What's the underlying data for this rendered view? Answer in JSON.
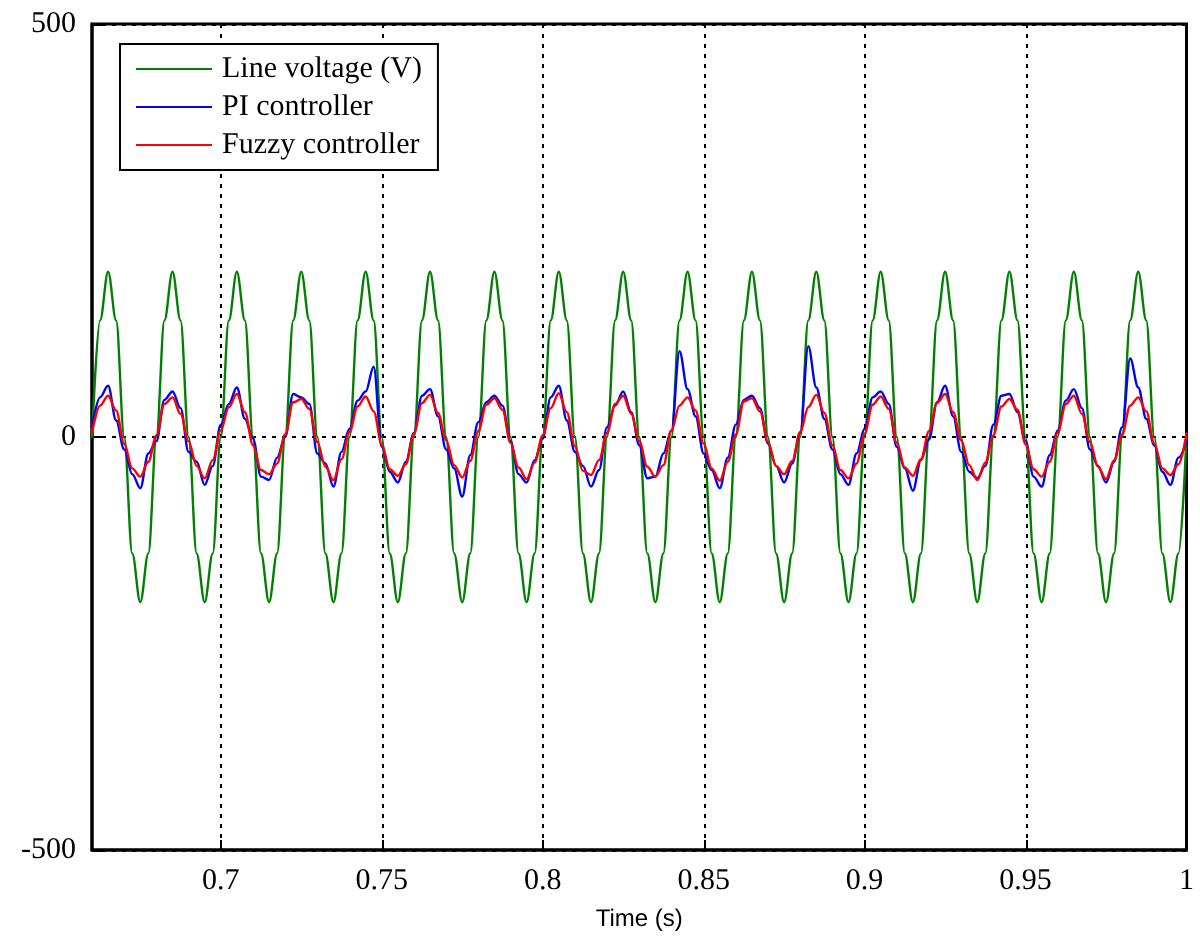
{
  "chart_data": {
    "type": "line",
    "xlabel": "Time (s)",
    "xlim": [
      0.66,
      1
    ],
    "xticks": [
      0.7,
      0.75,
      0.8,
      0.85,
      0.9,
      0.95,
      1
    ],
    "ylim": [
      -500,
      500
    ],
    "yticks": [
      -500,
      0,
      500
    ],
    "grid": true,
    "legend": "top left",
    "marker": "none",
    "line_style": "solid",
    "x": [
      0.66,
      0.6625,
      0.665,
      0.6675,
      0.67,
      0.6725,
      0.675,
      0.6775,
      0.68,
      0.6825,
      0.685,
      0.6875,
      0.69,
      0.6925,
      0.695,
      0.6975,
      0.7,
      0.7025,
      0.705,
      0.7075,
      0.71,
      0.7125,
      0.715,
      0.7175,
      0.72,
      0.7225,
      0.725,
      0.7275,
      0.73,
      0.7325,
      0.735,
      0.7375,
      0.74,
      0.7425,
      0.745,
      0.7475,
      0.75,
      0.7525,
      0.755,
      0.7575,
      0.76,
      0.7625,
      0.765,
      0.7675,
      0.77,
      0.7725,
      0.775,
      0.7775,
      0.78,
      0.7825,
      0.785,
      0.7875,
      0.79,
      0.7925,
      0.795,
      0.7975,
      0.8,
      0.8025,
      0.805,
      0.8075,
      0.81,
      0.8125,
      0.815,
      0.8175,
      0.82,
      0.8225,
      0.825,
      0.8275,
      0.83,
      0.8325,
      0.835,
      0.8375,
      0.84,
      0.8425,
      0.845,
      0.8475,
      0.85,
      0.8525,
      0.855,
      0.8575,
      0.86,
      0.8625,
      0.865,
      0.8675,
      0.87,
      0.8725,
      0.875,
      0.8775,
      0.88,
      0.8825,
      0.885,
      0.8875,
      0.89,
      0.8925,
      0.895,
      0.8975,
      0.9,
      0.9025,
      0.905,
      0.9075,
      0.91,
      0.9125,
      0.915,
      0.9175,
      0.92,
      0.9225,
      0.925,
      0.9275,
      0.93,
      0.9325,
      0.935,
      0.9375,
      0.94,
      0.9425,
      0.945,
      0.9475,
      0.95,
      0.9525,
      0.955,
      0.9575,
      0.96,
      0.9625,
      0.965,
      0.9675,
      0.97,
      0.9725,
      0.975,
      0.9775,
      0.98,
      0.9825,
      0.985,
      0.9875,
      0.99,
      0.9925,
      0.995,
      0.9975,
      1
    ],
    "series": [
      {
        "name": "Line voltage (V)",
        "color": "#008000",
        "values": [
          0,
          141,
          200,
          141,
          0,
          -141,
          -200,
          -141,
          0,
          141,
          200,
          141,
          0,
          -141,
          -200,
          -141,
          0,
          141,
          200,
          141,
          0,
          -141,
          -200,
          -141,
          0,
          141,
          200,
          141,
          0,
          -141,
          -200,
          -141,
          0,
          141,
          200,
          141,
          0,
          -141,
          -200,
          -141,
          0,
          141,
          200,
          141,
          0,
          -141,
          -200,
          -141,
          0,
          141,
          200,
          141,
          0,
          -141,
          -200,
          -141,
          0,
          141,
          200,
          141,
          0,
          -141,
          -200,
          -141,
          0,
          141,
          200,
          141,
          0,
          -141,
          -200,
          -141,
          0,
          141,
          200,
          141,
          0,
          -141,
          -200,
          -141,
          0,
          141,
          200,
          141,
          0,
          -141,
          -200,
          -141,
          0,
          141,
          200,
          141,
          0,
          -141,
          -200,
          -141,
          0,
          141,
          200,
          141,
          0,
          -141,
          -200,
          -141,
          0,
          141,
          200,
          141,
          0,
          -141,
          -200,
          -141,
          0,
          141,
          200,
          141,
          0,
          -141,
          -200,
          -141,
          0,
          141,
          200,
          141,
          0,
          -141,
          -200,
          -141,
          0,
          141,
          200,
          141,
          0,
          -141,
          -200,
          -141,
          0
        ]
      },
      {
        "name": "PI controller",
        "color": "#0000ff",
        "values": [
          12,
          48,
          62,
          20,
          -15,
          -45,
          -62,
          -20,
          -5,
          45,
          55,
          35,
          -18,
          -30,
          -58,
          -35,
          15,
          40,
          60,
          22,
          -2,
          -48,
          -52,
          -25,
          0,
          52,
          48,
          40,
          -20,
          -32,
          -60,
          -18,
          10,
          44,
          55,
          85,
          -12,
          -42,
          -55,
          -30,
          5,
          50,
          58,
          25,
          -15,
          -38,
          -72,
          -22,
          18,
          42,
          50,
          38,
          -5,
          -45,
          -55,
          -28,
          -2,
          48,
          62,
          20,
          -18,
          -35,
          -60,
          -40,
          12,
          38,
          55,
          30,
          -10,
          -50,
          -48,
          -20,
          8,
          104,
          58,
          25,
          -20,
          -40,
          -62,
          -25,
          15,
          45,
          50,
          35,
          -8,
          -35,
          -55,
          -32,
          5,
          110,
          60,
          22,
          -15,
          -45,
          -58,
          -20,
          10,
          48,
          55,
          40,
          -12,
          -38,
          -65,
          -28,
          -3,
          42,
          62,
          25,
          -18,
          -42,
          -50,
          -35,
          15,
          50,
          52,
          30,
          -5,
          -48,
          -60,
          -22,
          8,
          44,
          58,
          35,
          -15,
          -35,
          -55,
          -30,
          12,
          95,
          60,
          22,
          -10,
          -42,
          -58,
          -25,
          -5
        ]
      },
      {
        "name": "Fuzzy controller",
        "color": "#ff0000",
        "values": [
          5,
          38,
          50,
          32,
          -8,
          -38,
          -48,
          -30,
          2,
          40,
          48,
          28,
          -5,
          -35,
          -50,
          -28,
          8,
          36,
          52,
          30,
          -10,
          -40,
          -45,
          -32,
          3,
          42,
          46,
          34,
          -6,
          -36,
          -52,
          -27,
          6,
          37,
          49,
          31,
          -9,
          -39,
          -47,
          -33,
          4,
          41,
          51,
          29,
          -4,
          -34,
          -49,
          -29,
          7,
          39,
          47,
          33,
          -7,
          -37,
          -51,
          -31,
          2,
          35,
          53,
          30,
          -11,
          -41,
          -46,
          -28,
          5,
          40,
          50,
          28,
          -5,
          -36,
          -48,
          -34,
          8,
          38,
          48,
          32,
          -8,
          -38,
          -53,
          -30,
          3,
          43,
          47,
          31,
          -6,
          -35,
          -45,
          -29,
          6,
          36,
          51,
          29,
          -10,
          -40,
          -50,
          -32,
          4,
          39,
          49,
          34,
          -7,
          -37,
          -47,
          -27,
          7,
          41,
          52,
          30,
          -4,
          -34,
          -52,
          -31,
          2,
          37,
          46,
          33,
          -9,
          -39,
          -48,
          -30,
          5,
          40,
          50,
          28,
          -6,
          -36,
          -51,
          -28,
          3,
          38,
          48,
          31,
          -8,
          -38,
          -46,
          -33,
          4
        ]
      }
    ]
  }
}
